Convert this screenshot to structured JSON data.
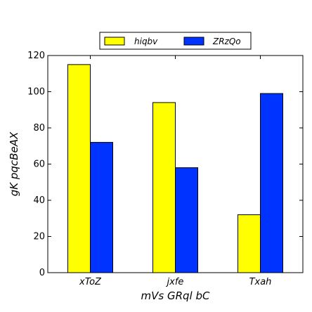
{
  "chart_data": {
    "type": "bar",
    "categories": [
      "xToZ",
      "jxfe",
      "Txah"
    ],
    "series": [
      {
        "name": "hiqbv",
        "color": "#ffff00",
        "values": [
          115,
          94,
          32
        ]
      },
      {
        "name": "ZRzQo",
        "color": "#0033ff",
        "values": [
          72,
          58,
          99
        ]
      }
    ],
    "xlabel": "mVs GRql bC",
    "ylabel": "gK pqcBeAX",
    "ylim": [
      0,
      120
    ],
    "yticks": [
      0,
      20,
      40,
      60,
      80,
      100,
      120
    ],
    "grid": false,
    "legend": "top-center"
  }
}
